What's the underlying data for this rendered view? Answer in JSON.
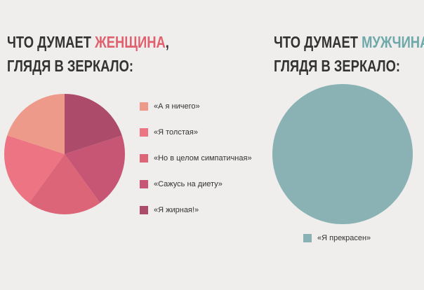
{
  "chart_data": [
    {
      "type": "pie",
      "title": {
        "prefix": "ЧТО ДУМАЕТ",
        "highlight": "ЖЕНЩИНА",
        "suffix": ",",
        "line2": "ГЛЯДЯ В ЗЕРКАЛО:"
      },
      "highlight_color": "#e0616d",
      "categories": [
        "«А я ничего»",
        "«Я толстая»",
        "«Но в целом симпатичная»",
        "«Сажусь на диету»",
        "«Я жирная!»"
      ],
      "values": [
        20,
        20,
        20,
        20,
        20
      ],
      "colors": [
        "#ee9a8b",
        "#ec7483",
        "#dc6678",
        "#c65673",
        "#ad4b6a"
      ]
    },
    {
      "type": "pie",
      "title": {
        "prefix": "ЧТО ДУМАЕТ",
        "highlight": "МУЖЧИНА",
        "suffix": ",",
        "line2": "ГЛЯДЯ В ЗЕРКАЛО:"
      },
      "highlight_color": "#6fa8aa",
      "categories": [
        "«Я прекрасен»"
      ],
      "values": [
        100
      ],
      "colors": [
        "#8ab2b4"
      ]
    }
  ]
}
